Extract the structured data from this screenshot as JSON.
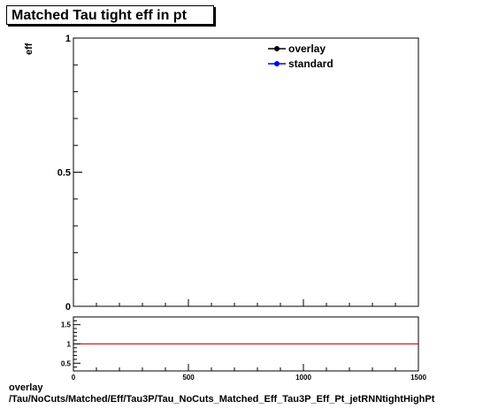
{
  "title": "Matched Tau tight eff in pt",
  "footer": {
    "line1": "overlay",
    "line2": "/Tau/NoCuts/Matched/Eff/Tau3P/Tau_NoCuts_Matched_Eff_Tau3P_Eff_Pt_jetRNNtightHighPt"
  },
  "colors": {
    "overlay": "#000000",
    "standard": "#0000ff",
    "ratio_line": "#cc0000"
  },
  "chart_data": [
    {
      "type": "line",
      "title": "Matched Tau tight eff in pt",
      "ylabel": "eff",
      "xlabel": "",
      "xlim": [
        0,
        1500
      ],
      "ylim": [
        0,
        1
      ],
      "y_ticks": [
        {
          "value": 0,
          "label": "0"
        },
        {
          "value": 0.5,
          "label": "0.5"
        },
        {
          "value": 1,
          "label": "1"
        }
      ],
      "legend": {
        "position": "top-right",
        "entries": [
          "overlay",
          "standard"
        ]
      },
      "series": [
        {
          "name": "overlay",
          "points": []
        },
        {
          "name": "standard",
          "points": []
        }
      ]
    },
    {
      "type": "line",
      "xlim": [
        0,
        1500
      ],
      "ylim": [
        0.3,
        1.7
      ],
      "x_ticks": [
        {
          "value": 0,
          "label": "0"
        },
        {
          "value": 500,
          "label": "500"
        },
        {
          "value": 1000,
          "label": "1000"
        },
        {
          "value": 1500,
          "label": "1500"
        }
      ],
      "y_ticks": [
        {
          "value": 0.5,
          "label": "0.5"
        },
        {
          "value": 1,
          "label": "1"
        },
        {
          "value": 1.5,
          "label": "1.5"
        }
      ],
      "reference_line": 1
    }
  ]
}
